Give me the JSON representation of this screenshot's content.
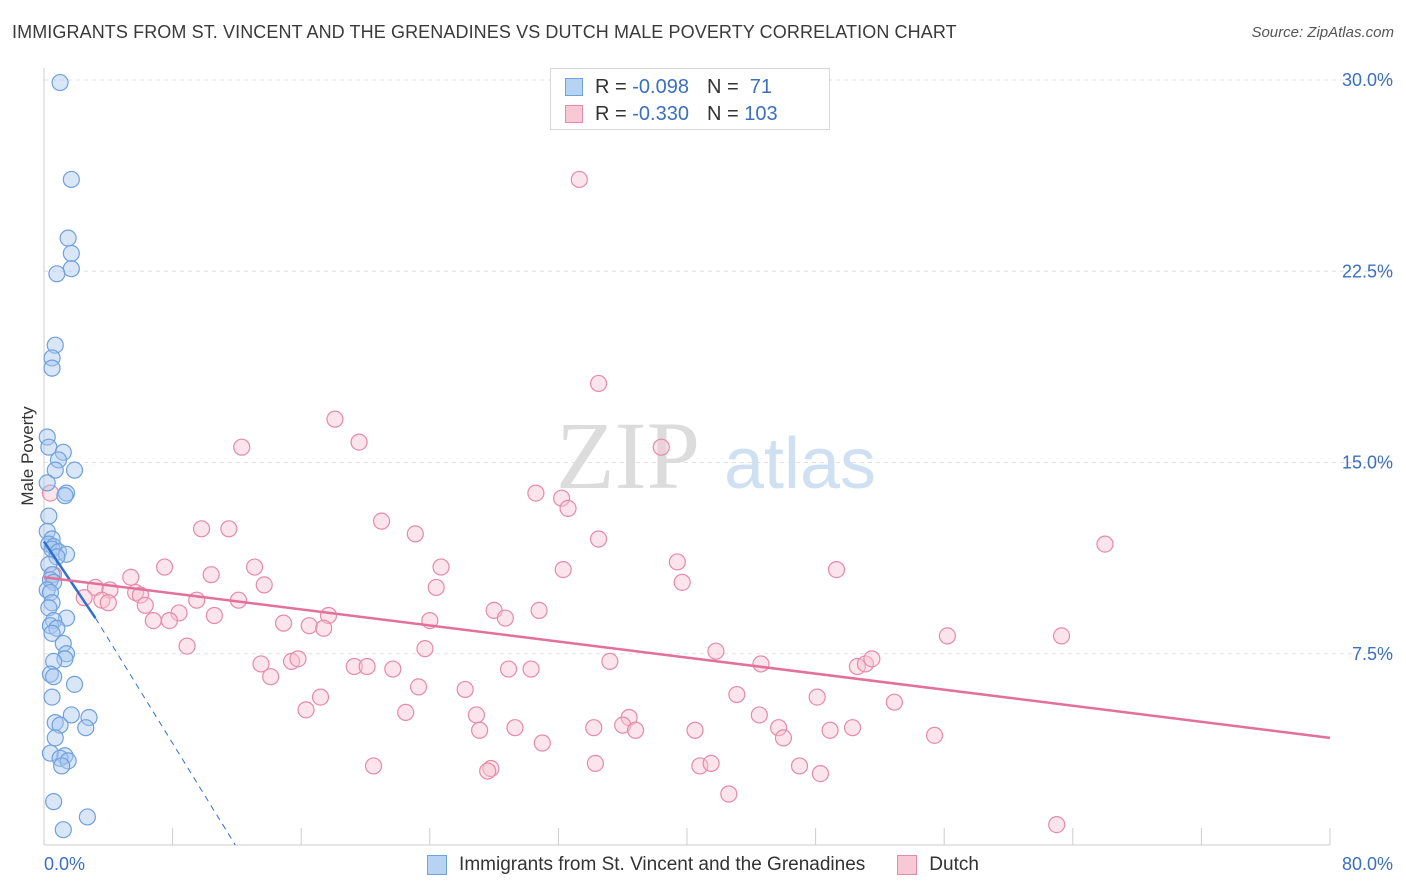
{
  "title": "IMMIGRANTS FROM ST. VINCENT AND THE GRENADINES VS DUTCH MALE POVERTY CORRELATION CHART",
  "source": "Source: ZipAtlas.com",
  "watermark": {
    "zip": "ZIP",
    "atlas": "atlas"
  },
  "legend": {
    "rows": [
      {
        "r_label": "R = ",
        "r_value": "-0.098",
        "n_label": "N = ",
        "n_value": " 71"
      },
      {
        "r_label": "R = ",
        "r_value": "-0.330",
        "n_label": "N = ",
        "n_value": "103"
      }
    ]
  },
  "colors": {
    "blue": "#6fa1dd",
    "blue_fill": "#a8c8ef",
    "blue_line": "#2f6fd0",
    "pink": "#e68aa8",
    "pink_fill": "#f6c4d3",
    "pink_line": "#e2709a",
    "tick_label": "#3b6fc0",
    "grid": "#e0e0e0"
  },
  "chart_data": {
    "type": "scatter",
    "title": "IMMIGRANTS FROM ST. VINCENT AND THE GRENADINES VS DUTCH MALE POVERTY CORRELATION CHART",
    "xlabel": "",
    "ylabel": "Male Poverty",
    "xlim": [
      0,
      80
    ],
    "ylim": [
      0,
      30
    ],
    "x_tick_labels": [
      "0.0%",
      "80.0%"
    ],
    "y_ticks": [
      7.5,
      15.0,
      22.5,
      30.0
    ],
    "y_tick_labels": [
      "7.5%",
      "15.0%",
      "22.5%",
      "30.0%"
    ],
    "grid": true,
    "series": [
      {
        "name": "Immigrants from St. Vincent and the Grenadines",
        "color": "#6fa1dd",
        "points": [
          [
            1.0,
            29.9
          ],
          [
            1.7,
            26.1
          ],
          [
            1.5,
            23.8
          ],
          [
            1.7,
            23.2
          ],
          [
            1.7,
            22.6
          ],
          [
            0.8,
            22.4
          ],
          [
            0.7,
            19.6
          ],
          [
            0.5,
            19.1
          ],
          [
            0.5,
            18.7
          ],
          [
            0.2,
            16.0
          ],
          [
            0.3,
            15.6
          ],
          [
            1.2,
            15.4
          ],
          [
            0.9,
            15.1
          ],
          [
            0.7,
            14.7
          ],
          [
            1.9,
            14.7
          ],
          [
            0.2,
            14.2
          ],
          [
            1.4,
            13.8
          ],
          [
            1.3,
            13.7
          ],
          [
            0.3,
            12.9
          ],
          [
            0.2,
            12.3
          ],
          [
            0.5,
            12.0
          ],
          [
            0.3,
            11.8
          ],
          [
            0.6,
            11.7
          ],
          [
            0.5,
            11.6
          ],
          [
            0.9,
            11.5
          ],
          [
            1.4,
            11.4
          ],
          [
            0.8,
            11.3
          ],
          [
            0.3,
            11.0
          ],
          [
            0.5,
            10.6
          ],
          [
            0.4,
            10.4
          ],
          [
            0.6,
            10.3
          ],
          [
            0.2,
            10.0
          ],
          [
            0.4,
            9.9
          ],
          [
            0.5,
            9.5
          ],
          [
            0.3,
            9.3
          ],
          [
            1.4,
            8.9
          ],
          [
            0.6,
            8.8
          ],
          [
            0.4,
            8.6
          ],
          [
            0.8,
            8.5
          ],
          [
            0.5,
            8.3
          ],
          [
            1.2,
            7.9
          ],
          [
            1.4,
            7.5
          ],
          [
            1.3,
            7.3
          ],
          [
            0.6,
            7.2
          ],
          [
            0.4,
            6.7
          ],
          [
            0.6,
            6.6
          ],
          [
            1.9,
            6.3
          ],
          [
            0.5,
            5.8
          ],
          [
            2.8,
            5.0
          ],
          [
            1.7,
            5.1
          ],
          [
            0.7,
            4.8
          ],
          [
            1.0,
            4.7
          ],
          [
            2.6,
            4.6
          ],
          [
            0.7,
            4.2
          ],
          [
            0.4,
            3.6
          ],
          [
            1.3,
            3.5
          ],
          [
            1.0,
            3.4
          ],
          [
            1.5,
            3.3
          ],
          [
            1.1,
            3.1
          ],
          [
            0.6,
            1.7
          ],
          [
            2.7,
            1.1
          ],
          [
            1.2,
            0.6
          ]
        ]
      },
      {
        "name": "Dutch",
        "color": "#e68aa8",
        "points": [
          [
            33.3,
            26.1
          ],
          [
            34.5,
            18.1
          ],
          [
            18.1,
            16.7
          ],
          [
            19.6,
            15.8
          ],
          [
            12.3,
            15.6
          ],
          [
            38.4,
            15.6
          ],
          [
            30.6,
            13.8
          ],
          [
            32.2,
            13.6
          ],
          [
            32.6,
            13.2
          ],
          [
            21.0,
            12.7
          ],
          [
            23.1,
            12.2
          ],
          [
            9.8,
            12.4
          ],
          [
            11.5,
            12.4
          ],
          [
            34.5,
            12.0
          ],
          [
            66.0,
            11.8
          ],
          [
            7.5,
            10.9
          ],
          [
            13.1,
            10.9
          ],
          [
            24.7,
            10.9
          ],
          [
            32.3,
            10.8
          ],
          [
            39.4,
            11.1
          ],
          [
            49.3,
            10.8
          ],
          [
            5.4,
            10.5
          ],
          [
            10.4,
            10.6
          ],
          [
            13.7,
            10.2
          ],
          [
            24.4,
            10.1
          ],
          [
            39.7,
            10.3
          ],
          [
            3.2,
            10.1
          ],
          [
            4.1,
            10.0
          ],
          [
            5.7,
            9.9
          ],
          [
            6.0,
            9.8
          ],
          [
            2.5,
            9.7
          ],
          [
            3.6,
            9.6
          ],
          [
            4.0,
            9.5
          ],
          [
            6.3,
            9.4
          ],
          [
            9.5,
            9.6
          ],
          [
            12.1,
            9.6
          ],
          [
            8.4,
            9.1
          ],
          [
            10.6,
            9.0
          ],
          [
            17.7,
            9.0
          ],
          [
            28.0,
            9.2
          ],
          [
            28.7,
            8.9
          ],
          [
            30.8,
            9.2
          ],
          [
            6.8,
            8.8
          ],
          [
            7.8,
            8.8
          ],
          [
            14.9,
            8.7
          ],
          [
            16.5,
            8.6
          ],
          [
            17.4,
            8.5
          ],
          [
            24.0,
            8.8
          ],
          [
            56.2,
            8.2
          ],
          [
            63.3,
            8.2
          ],
          [
            8.9,
            7.8
          ],
          [
            23.7,
            7.7
          ],
          [
            41.8,
            7.6
          ],
          [
            13.5,
            7.1
          ],
          [
            15.4,
            7.2
          ],
          [
            15.8,
            7.3
          ],
          [
            19.3,
            7.0
          ],
          [
            21.7,
            6.9
          ],
          [
            35.2,
            7.2
          ],
          [
            44.6,
            7.1
          ],
          [
            50.6,
            7.0
          ],
          [
            51.1,
            7.1
          ],
          [
            51.5,
            7.3
          ],
          [
            14.1,
            6.6
          ],
          [
            20.1,
            7.0
          ],
          [
            28.9,
            6.9
          ],
          [
            30.3,
            6.9
          ],
          [
            23.3,
            6.2
          ],
          [
            26.2,
            6.1
          ],
          [
            17.2,
            5.8
          ],
          [
            43.1,
            5.9
          ],
          [
            48.1,
            5.8
          ],
          [
            52.9,
            5.6
          ],
          [
            16.3,
            5.3
          ],
          [
            22.5,
            5.2
          ],
          [
            26.9,
            5.1
          ],
          [
            36.4,
            5.0
          ],
          [
            34.2,
            4.6
          ],
          [
            27.1,
            4.5
          ],
          [
            36.0,
            4.7
          ],
          [
            36.8,
            4.5
          ],
          [
            29.3,
            4.6
          ],
          [
            40.5,
            4.5
          ],
          [
            44.5,
            5.1
          ],
          [
            45.7,
            4.6
          ],
          [
            48.9,
            4.5
          ],
          [
            50.3,
            4.6
          ],
          [
            55.4,
            4.3
          ],
          [
            46.0,
            4.2
          ],
          [
            31.0,
            4.0
          ],
          [
            20.5,
            3.1
          ],
          [
            27.8,
            3.0
          ],
          [
            27.6,
            2.9
          ],
          [
            34.3,
            3.2
          ],
          [
            40.8,
            3.1
          ],
          [
            41.5,
            3.2
          ],
          [
            47.0,
            3.1
          ],
          [
            48.3,
            2.8
          ],
          [
            42.6,
            2.0
          ],
          [
            63.0,
            0.8
          ],
          [
            0.4,
            13.8
          ],
          [
            0.6,
            10.6
          ]
        ]
      }
    ],
    "trendlines": [
      {
        "series": "Immigrants from St. Vincent and the Grenadines",
        "style": "solid",
        "x": [
          0.0,
          3.2
        ],
        "y": [
          11.9,
          8.9
        ]
      },
      {
        "series": "Immigrants from St. Vincent and the Grenadines",
        "style": "dashed",
        "x": [
          3.2,
          11.9
        ],
        "y": [
          8.9,
          0.0
        ]
      },
      {
        "series": "Dutch",
        "style": "solid",
        "x": [
          0.0,
          80.0
        ],
        "y": [
          10.5,
          4.2
        ]
      }
    ]
  }
}
